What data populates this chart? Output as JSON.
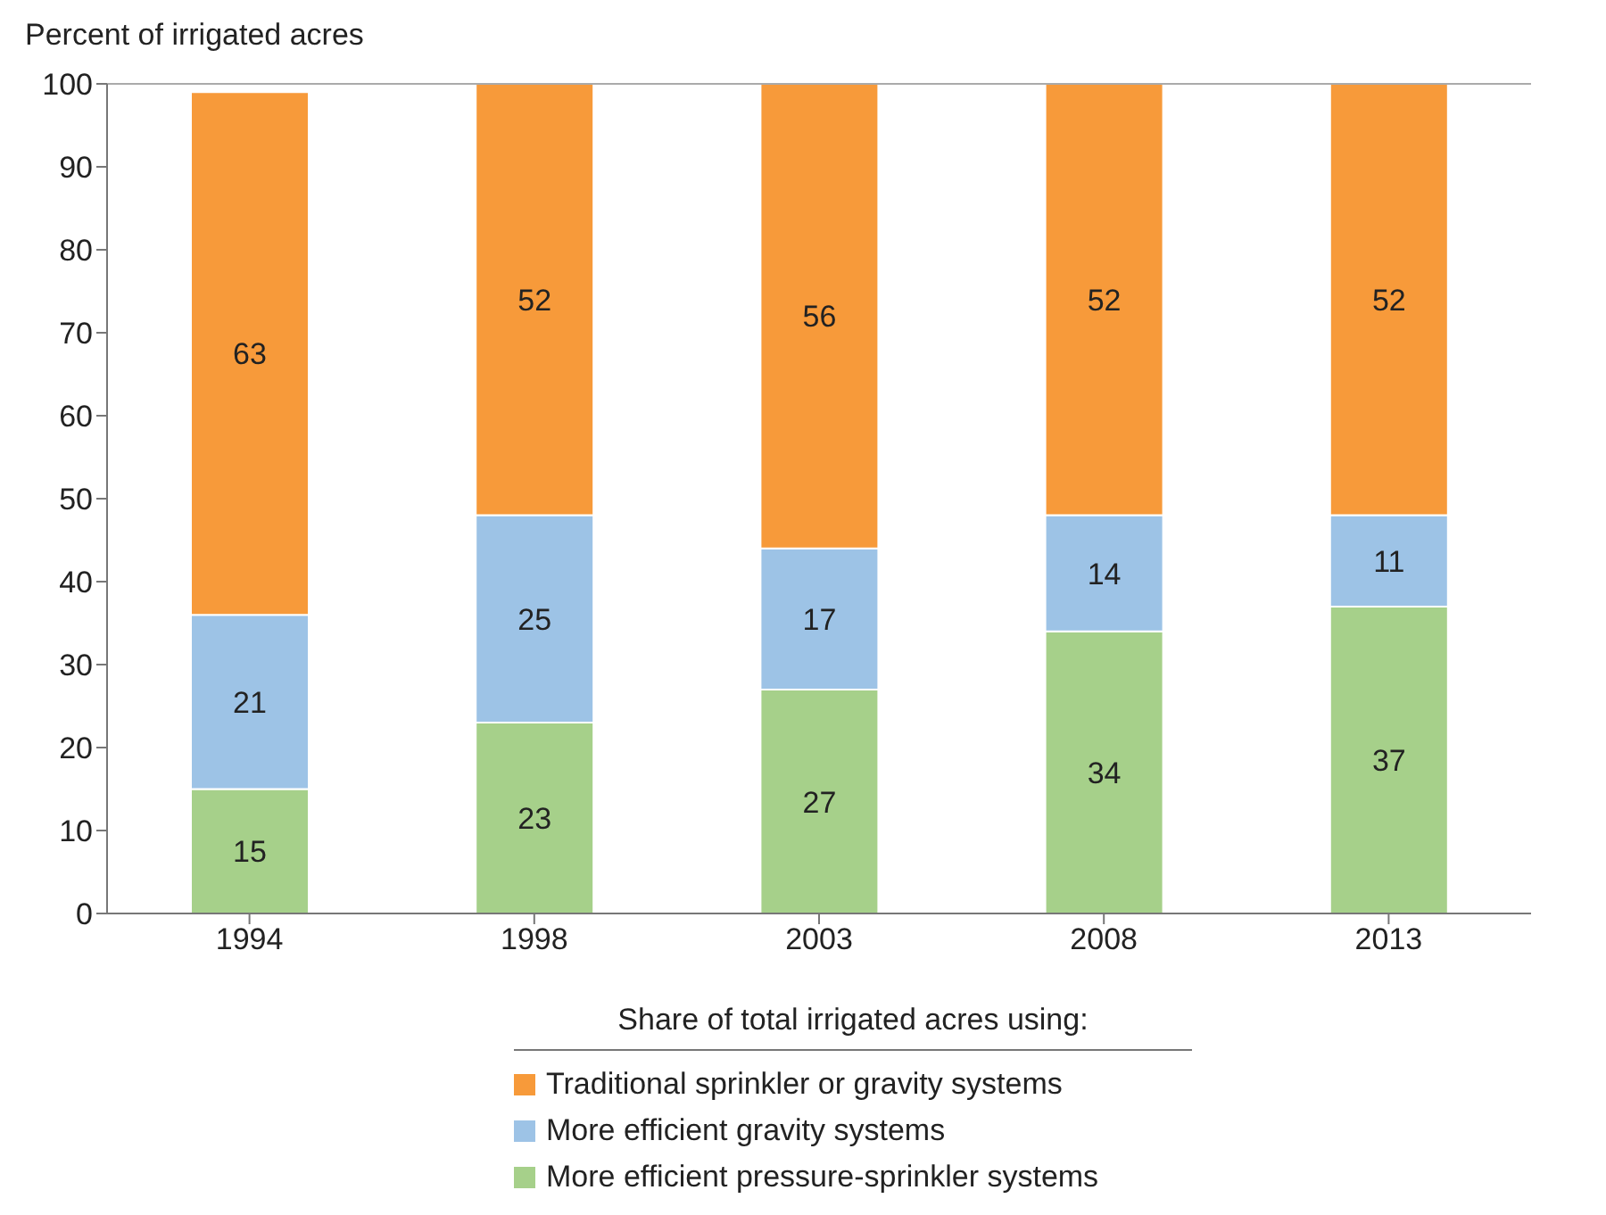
{
  "chart_data": {
    "type": "bar",
    "stacked": true,
    "ylabel": "Percent of irrigated acres",
    "legend_title": "Share of total irrigated acres using:",
    "categories": [
      "1994",
      "1998",
      "2003",
      "2008",
      "2013"
    ],
    "series": [
      {
        "name": "More efficient pressure-sprinkler systems",
        "color": "#a6d08a",
        "values": [
          15,
          23,
          27,
          34,
          37
        ]
      },
      {
        "name": "More efficient gravity systems",
        "color": "#9dc3e6",
        "values": [
          21,
          25,
          17,
          14,
          11
        ]
      },
      {
        "name": "Traditional sprinkler or gravity systems",
        "color": "#f79a3a",
        "values": [
          63,
          52,
          56,
          52,
          52
        ]
      }
    ],
    "ylim": [
      0,
      100
    ],
    "yticks": [
      0,
      10,
      20,
      30,
      40,
      50,
      60,
      70,
      80,
      90,
      100
    ],
    "grid": false,
    "legend": "bottom",
    "data_labels": true
  }
}
